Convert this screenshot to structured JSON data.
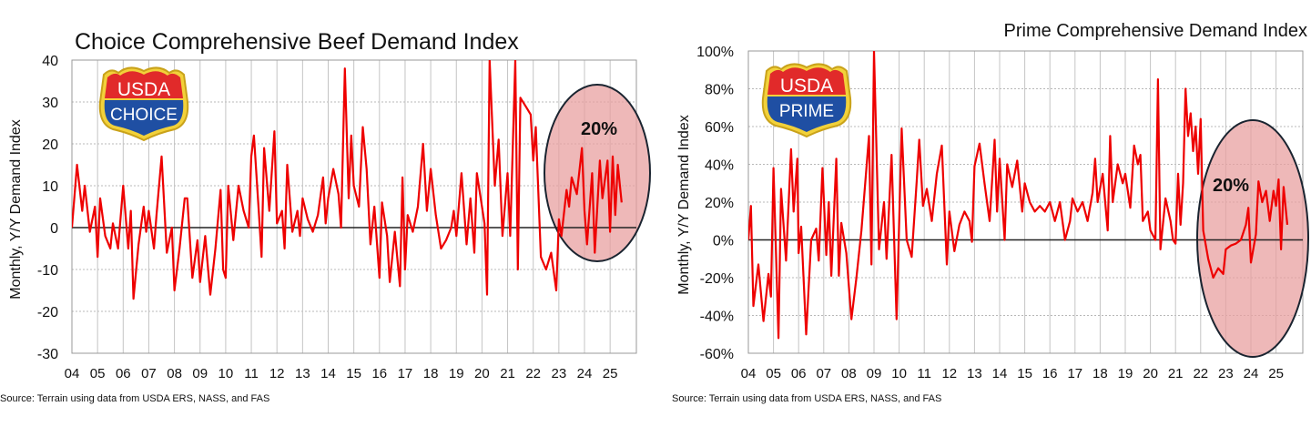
{
  "chart_data": [
    {
      "type": "line",
      "title": "Choice Comprehensive Beef Demand Index",
      "ylabel": "Monthly, Y/Y Demand Index",
      "xlabel": "",
      "ylim": [
        -30,
        40
      ],
      "yticks": [
        "40",
        "30",
        "20",
        "10",
        "0",
        "-10",
        "-20",
        "-30"
      ],
      "ytick_values": [
        40,
        30,
        20,
        10,
        0,
        -10,
        -20,
        -30
      ],
      "xticks": [
        "04",
        "05",
        "06",
        "07",
        "08",
        "09",
        "10",
        "11",
        "12",
        "13",
        "14",
        "15",
        "16",
        "17",
        "18",
        "19",
        "20",
        "21",
        "22",
        "23",
        "24",
        "25"
      ],
      "grid": true,
      "logo": {
        "top": "USDA",
        "bottom": "CHOICE"
      },
      "annotation": "20%",
      "source": "Source: Terrain using data from USDA ERS, NASS, and FAS",
      "colors": {
        "line": "#ee0000",
        "highlight": "#e8a0a0",
        "ellipse_stroke": "#1a2430"
      },
      "series": [
        {
          "x": [
            2004.0,
            2004.2,
            2004.4,
            2004.5,
            2004.7,
            2004.9,
            2005.0,
            2005.1,
            2005.3,
            2005.5,
            2005.6,
            2005.8,
            2006.0,
            2006.2,
            2006.3,
            2006.4,
            2006.6,
            2006.8,
            2006.9,
            2007.0,
            2007.2,
            2007.3,
            2007.5,
            2007.7,
            2007.9,
            2008.0,
            2008.2,
            2008.4,
            2008.5,
            2008.7,
            2008.9,
            2009.0,
            2009.2,
            2009.4,
            2009.6,
            2009.8,
            2009.9,
            2010.0,
            2010.1,
            2010.3,
            2010.5,
            2010.7,
            2010.9,
            2011.0,
            2011.1,
            2011.3,
            2011.4,
            2011.5,
            2011.7,
            2011.9,
            2012.0,
            2012.2,
            2012.3,
            2012.4,
            2012.6,
            2012.8,
            2012.9,
            2013.0,
            2013.2,
            2013.4,
            2013.6,
            2013.8,
            2013.9,
            2014.0,
            2014.2,
            2014.4,
            2014.5,
            2014.65,
            2014.8,
            2014.9,
            2015.0,
            2015.2,
            2015.35,
            2015.5,
            2015.65,
            2015.8,
            2016.0,
            2016.1,
            2016.3,
            2016.4,
            2016.6,
            2016.8,
            2016.9,
            2017.0,
            2017.1,
            2017.3,
            2017.5,
            2017.7,
            2017.85,
            2018.0,
            2018.2,
            2018.4,
            2018.6,
            2018.8,
            2018.9,
            2019.0,
            2019.2,
            2019.4,
            2019.55,
            2019.7,
            2019.8,
            2020.0,
            2020.1,
            2020.2,
            2020.3,
            2020.5,
            2020.65,
            2020.8,
            2021.0,
            2021.1,
            2021.3,
            2021.4,
            2021.5,
            2021.7,
            2021.9,
            2022.0,
            2022.1,
            2022.3,
            2022.5,
            2022.7,
            2022.9,
            2023.0,
            2023.1,
            2023.3,
            2023.4,
            2023.5,
            2023.7,
            2023.9,
            2024.0,
            2024.1,
            2024.3,
            2024.4,
            2024.6,
            2024.7,
            2024.9,
            2025.0,
            2025.1,
            2025.2,
            2025.3,
            2025.45
          ],
          "y": [
            0,
            15,
            4,
            10,
            -1,
            5,
            -7,
            7,
            -2,
            -5,
            1,
            -5,
            10,
            -5,
            4,
            -17,
            -4,
            5,
            -1,
            4,
            -5,
            3,
            17,
            -6,
            0,
            -15,
            -5,
            7,
            7,
            -12,
            -3,
            -13,
            -2,
            -16,
            -5,
            9,
            -10,
            -12,
            10,
            -3,
            10,
            4,
            0,
            17,
            22,
            3,
            -7,
            19,
            4,
            23,
            1,
            4,
            -5,
            15,
            -1,
            4,
            -2,
            7,
            2,
            -1,
            3,
            12,
            1,
            7,
            14,
            8,
            0,
            38,
            7,
            22,
            10,
            5,
            24,
            14,
            -4,
            5,
            -12,
            6,
            -2,
            -13,
            -1,
            -14,
            12,
            -10,
            3,
            -1,
            5,
            20,
            4,
            14,
            3,
            -5,
            -3,
            0,
            4,
            -2,
            13,
            -4,
            7,
            -6,
            13,
            5,
            1,
            -16,
            40,
            10,
            21,
            -2,
            13,
            -2,
            40,
            -10,
            31,
            29,
            27,
            16,
            24,
            -7,
            -10,
            -6,
            -15,
            2,
            -2,
            9,
            5,
            12,
            8,
            19,
            4,
            -4,
            13,
            -6,
            16,
            7,
            16,
            -1,
            17,
            3,
            15,
            6
          ]
        }
      ]
    },
    {
      "type": "line",
      "title": "Prime Comprehensive Demand Index",
      "ylabel": "Monthly, Y/Y Demand Index",
      "xlabel": "",
      "ylim": [
        -60,
        100
      ],
      "yticks": [
        "100%",
        "80%",
        "60%",
        "40%",
        "20%",
        "0%",
        "-20%",
        "-40%",
        "-60%"
      ],
      "ytick_values": [
        100,
        80,
        60,
        40,
        20,
        0,
        -20,
        -40,
        -60
      ],
      "xticks": [
        "04",
        "05",
        "06",
        "07",
        "08",
        "09",
        "10",
        "11",
        "12",
        "13",
        "14",
        "15",
        "16",
        "17",
        "18",
        "19",
        "20",
        "21",
        "22",
        "23",
        "24",
        "25"
      ],
      "grid": true,
      "logo": {
        "top": "USDA",
        "bottom": "PRIME"
      },
      "annotation": "20%",
      "source": "Source: Terrain using data from USDA ERS, NASS, and FAS",
      "colors": {
        "line": "#ee0000",
        "highlight": "#e8a0a0",
        "ellipse_stroke": "#1a2430"
      },
      "series": [
        {
          "x": [
            2004.0,
            2004.1,
            2004.2,
            2004.4,
            2004.6,
            2004.8,
            2004.9,
            2005.0,
            2005.2,
            2005.3,
            2005.5,
            2005.7,
            2005.8,
            2005.95,
            2006.0,
            2006.1,
            2006.3,
            2006.5,
            2006.7,
            2006.8,
            2006.95,
            2007.1,
            2007.2,
            2007.3,
            2007.5,
            2007.6,
            2007.7,
            2007.9,
            2008.1,
            2008.3,
            2008.5,
            2008.8,
            2008.9,
            2009.0,
            2009.2,
            2009.4,
            2009.5,
            2009.7,
            2009.9,
            2010.1,
            2010.3,
            2010.5,
            2010.7,
            2010.8,
            2010.95,
            2011.1,
            2011.3,
            2011.5,
            2011.7,
            2011.9,
            2012.0,
            2012.2,
            2012.4,
            2012.6,
            2012.8,
            2012.9,
            2013.0,
            2013.2,
            2013.4,
            2013.6,
            2013.8,
            2013.9,
            2014.0,
            2014.2,
            2014.3,
            2014.5,
            2014.7,
            2014.9,
            2015.0,
            2015.2,
            2015.4,
            2015.6,
            2015.8,
            2016.0,
            2016.2,
            2016.4,
            2016.6,
            2016.8,
            2016.9,
            2017.1,
            2017.3,
            2017.5,
            2017.7,
            2017.8,
            2017.9,
            2018.1,
            2018.3,
            2018.4,
            2018.5,
            2018.7,
            2018.9,
            2019.0,
            2019.2,
            2019.35,
            2019.5,
            2019.6,
            2019.7,
            2019.9,
            2020.0,
            2020.2,
            2020.3,
            2020.4,
            2020.6,
            2020.8,
            2020.9,
            2021.0,
            2021.1,
            2021.2,
            2021.3,
            2021.4,
            2021.5,
            2021.6,
            2021.7,
            2021.8,
            2021.9,
            2022.0,
            2022.1,
            2022.3,
            2022.5,
            2022.7,
            2022.9,
            2023.0,
            2023.2,
            2023.4,
            2023.6,
            2023.8,
            2023.9,
            2024.0,
            2024.2,
            2024.3,
            2024.45,
            2024.6,
            2024.75,
            2024.9,
            2025.0,
            2025.1,
            2025.2,
            2025.3,
            2025.45
          ],
          "y": [
            0,
            18,
            -35,
            -13,
            -43,
            -18,
            -30,
            38,
            -52,
            27,
            -11,
            48,
            15,
            43,
            -7,
            7,
            -50,
            0,
            6,
            -11,
            38,
            -8,
            20,
            -19,
            43,
            -19,
            9,
            -7,
            -42,
            -20,
            5,
            55,
            -13,
            100,
            -5,
            20,
            -10,
            45,
            -42,
            59,
            0,
            -9,
            31,
            53,
            18,
            27,
            10,
            35,
            50,
            -13,
            15,
            -6,
            8,
            15,
            10,
            -1,
            39,
            51,
            30,
            10,
            53,
            15,
            43,
            0,
            40,
            28,
            42,
            15,
            30,
            20,
            15,
            18,
            15,
            20,
            10,
            20,
            0,
            10,
            22,
            15,
            20,
            10,
            25,
            43,
            20,
            35,
            5,
            55,
            20,
            40,
            30,
            35,
            17,
            50,
            40,
            45,
            10,
            15,
            5,
            0,
            85,
            -5,
            22,
            10,
            0,
            -2,
            35,
            8,
            30,
            80,
            55,
            67,
            47,
            60,
            35,
            64,
            5,
            -10,
            -20,
            -15,
            -18,
            -5,
            -3,
            -2,
            0,
            8,
            17,
            -12,
            3,
            31,
            20,
            26,
            10,
            26,
            18,
            32,
            -5,
            28,
            8
          ]
        }
      ]
    }
  ]
}
